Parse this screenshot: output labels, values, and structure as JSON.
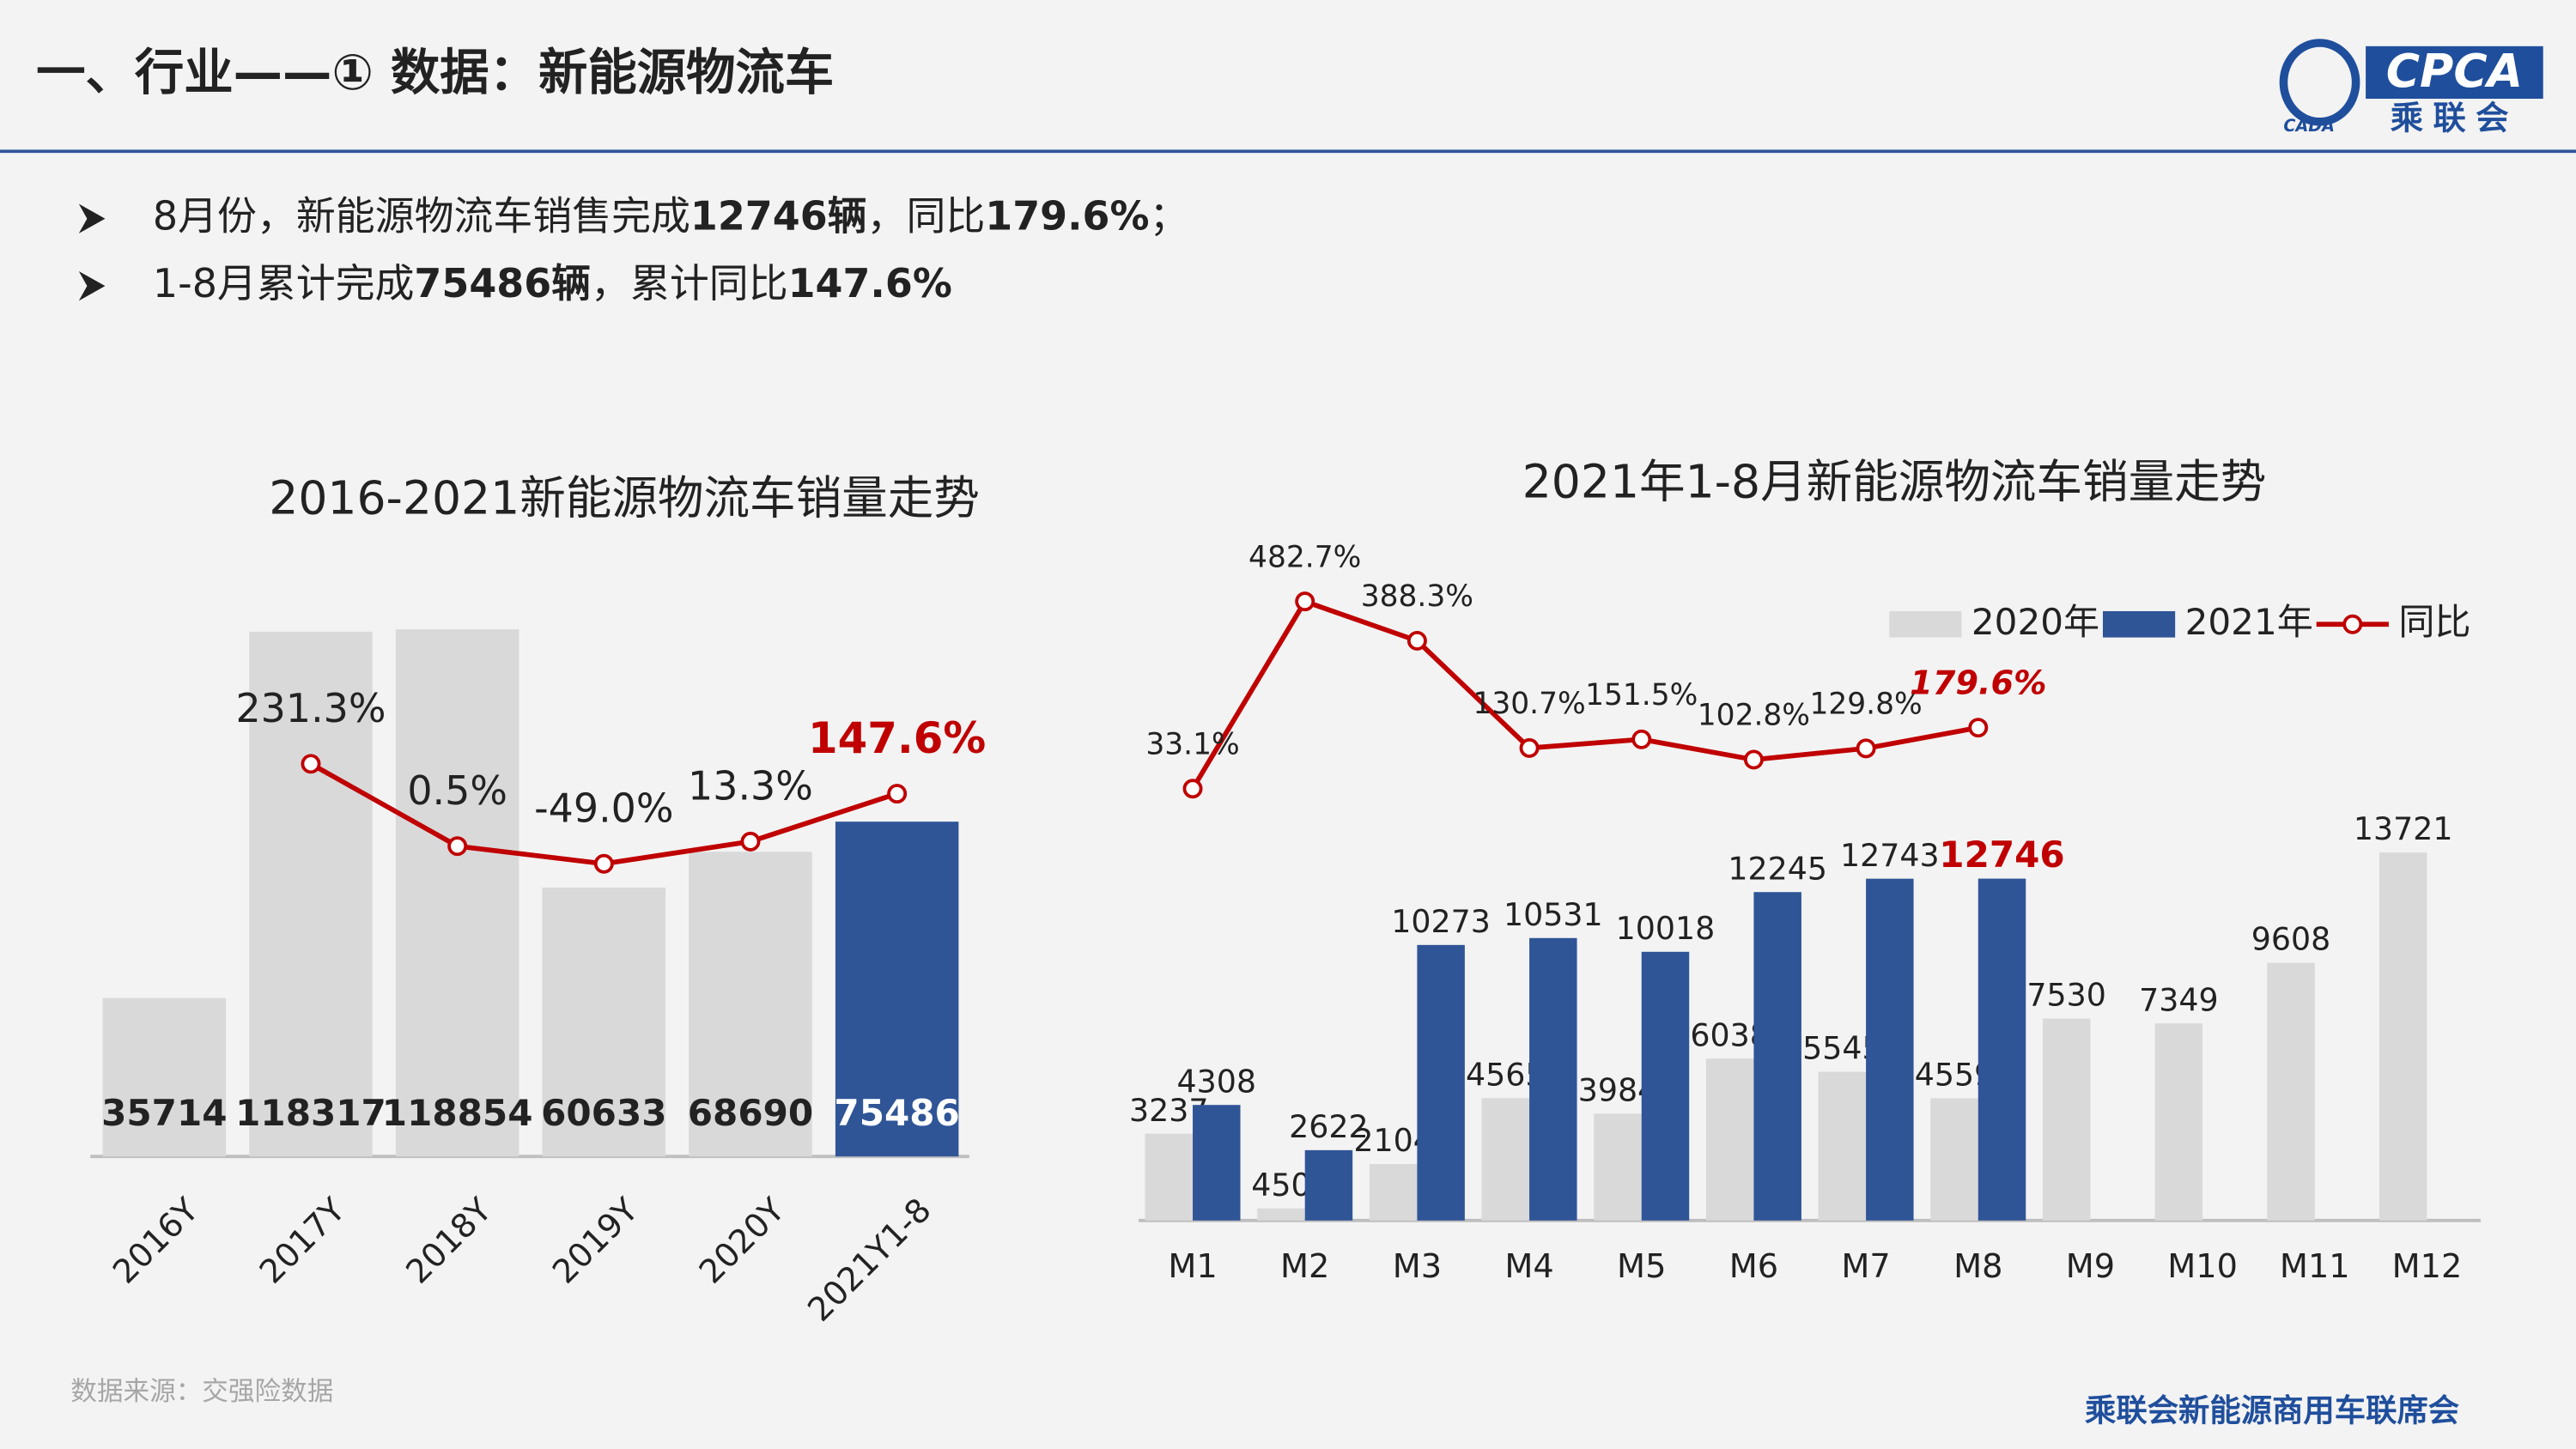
{
  "header": {
    "title": "一、行业——① 数据：新能源物流车",
    "logo_text": "CPCA",
    "logo_org": "乘联会",
    "logo_small": "CADA"
  },
  "bullets": [
    [
      "8月份，新能源物流车销售完成",
      "12746辆",
      "，同比",
      "179.6%",
      "；"
    ],
    [
      "1-8月累计完成",
      "75486辆",
      "，累计同比",
      "147.6%"
    ]
  ],
  "chart_data": [
    {
      "type": "combo",
      "title": "2016-2021新能源物流车销量走势",
      "categories": [
        "2016Y",
        "2017Y",
        "2018Y",
        "2019Y",
        "2020Y",
        "2021Y1-8"
      ],
      "value_label_position": "inside-bottom",
      "ylim": [
        0,
        138500
      ],
      "y2lim": [
        -870,
        853
      ],
      "series": [
        {
          "type": "bar",
          "values": [
            35714,
            118317,
            118854,
            60633,
            68690,
            75486
          ],
          "colors": [
            "#d9d9d9",
            "#d9d9d9",
            "#d9d9d9",
            "#d9d9d9",
            "#d9d9d9",
            "#2f5597"
          ]
        },
        {
          "type": "line",
          "axis": "y2",
          "color": "#c00000",
          "values": [
            null,
            231.3,
            0.5,
            -49.0,
            13.3,
            147.6
          ],
          "value_labels": [
            null,
            "231.3%",
            "0.5%",
            "-49.0%",
            "13.3%",
            "147.6%"
          ]
        }
      ]
    },
    {
      "type": "combo",
      "title": "2021年1-8月新能源物流车销量走势",
      "categories": [
        "M1",
        "M2",
        "M3",
        "M4",
        "M5",
        "M6",
        "M7",
        "M8",
        "M9",
        "M10",
        "M11",
        "M12"
      ],
      "value_label_position": "above",
      "legend": "top-right",
      "ylim": [
        0,
        25290
      ],
      "y2lim": [
        -1004,
        625
      ],
      "series": [
        {
          "type": "bar",
          "name": "2020年",
          "color": "#d9d9d9",
          "values": [
            3237,
            450,
            2104,
            4565,
            3984,
            6038,
            5545,
            4559,
            7530,
            7349,
            9608,
            13721
          ]
        },
        {
          "type": "bar",
          "name": "2021年",
          "color": "#2f5597",
          "values": [
            4308,
            2622,
            10273,
            10531,
            10018,
            12245,
            12743,
            12746,
            null,
            null,
            null,
            null
          ]
        },
        {
          "type": "line",
          "name": "同比",
          "axis": "y2",
          "color": "#c00000",
          "values": [
            33.1,
            482.7,
            388.3,
            130.7,
            151.5,
            102.8,
            129.8,
            179.6,
            null,
            null,
            null,
            null
          ],
          "value_labels": [
            "33.1%",
            "482.7%",
            "388.3%",
            "130.7%",
            "151.5%",
            "102.8%",
            "129.8%",
            "179.6%",
            null,
            null,
            null,
            null
          ]
        }
      ]
    }
  ],
  "footer": {
    "source": "数据来源：交强险数据",
    "org": "乘联会新能源商用车联席会"
  }
}
